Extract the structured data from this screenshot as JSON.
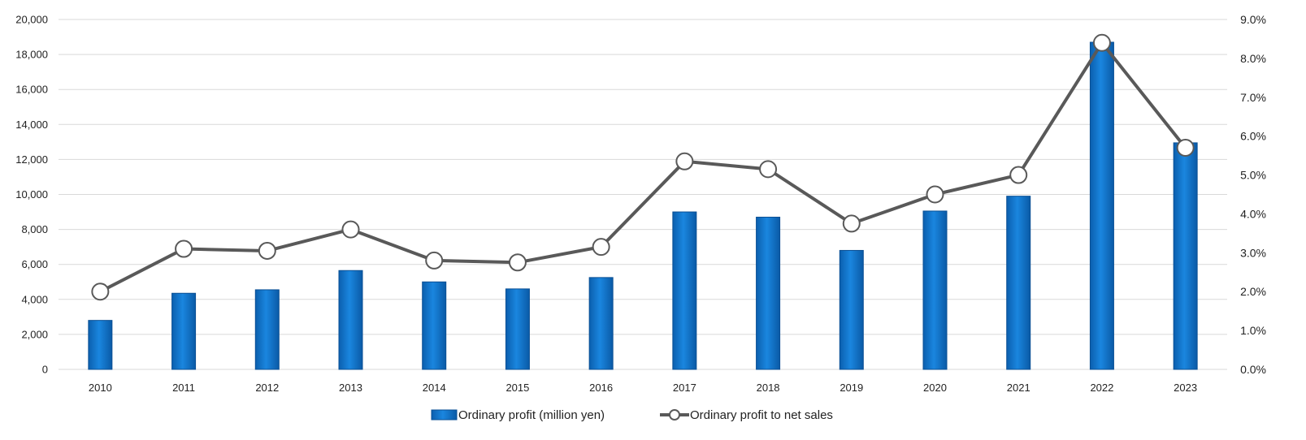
{
  "chart_data": {
    "type": "bar",
    "categories": [
      "2010",
      "2011",
      "2012",
      "2013",
      "2014",
      "2015",
      "2016",
      "2017",
      "2018",
      "2019",
      "2020",
      "2021",
      "2022",
      "2023"
    ],
    "series": [
      {
        "name": "Ordinary profit (million yen)",
        "chart_type": "bar",
        "axis": "left",
        "color": "#0a6fc7",
        "values": [
          2800,
          4350,
          4550,
          5650,
          5000,
          4600,
          5250,
          9000,
          8700,
          6800,
          9050,
          9900,
          18700,
          12950
        ]
      },
      {
        "name": "Ordinary profit to net sales",
        "chart_type": "line",
        "axis": "right",
        "color": "#595959",
        "values": [
          2.0,
          3.1,
          3.05,
          3.6,
          2.8,
          2.75,
          3.15,
          5.35,
          5.15,
          3.75,
          4.5,
          5.0,
          8.4,
          5.7
        ]
      }
    ],
    "y_left": {
      "ylim": [
        0,
        20000
      ],
      "ticks": [
        "0",
        "2,000",
        "4,000",
        "6,000",
        "8,000",
        "10,000",
        "12,000",
        "14,000",
        "16,000",
        "18,000",
        "20,000"
      ]
    },
    "y_right": {
      "ylim": [
        0,
        9
      ],
      "ticks": [
        "0.0%",
        "1.0%",
        "2.0%",
        "3.0%",
        "4.0%",
        "5.0%",
        "6.0%",
        "7.0%",
        "8.0%",
        "9.0%"
      ]
    },
    "grid": true,
    "legend_position": "bottom-center"
  }
}
